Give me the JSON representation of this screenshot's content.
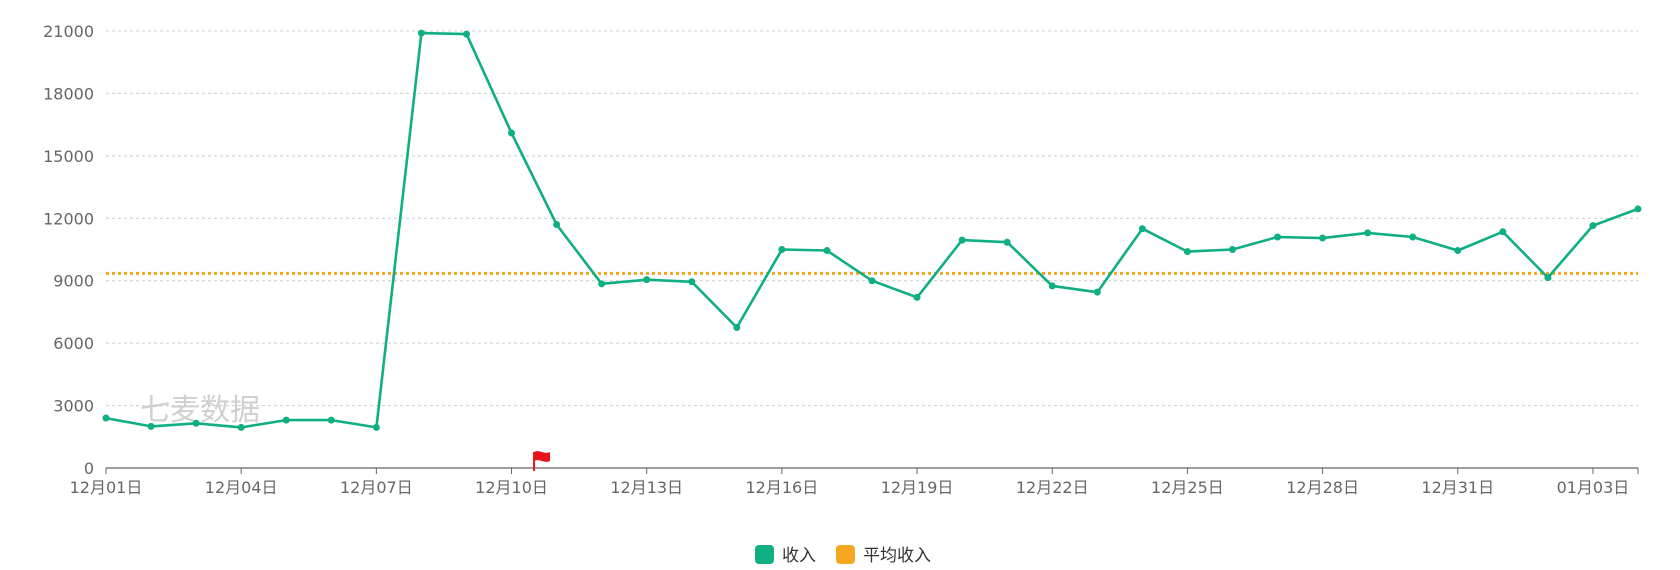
{
  "watermark": "七麦数据",
  "colors": {
    "income": "#0fae83",
    "average": "#f5a623",
    "grid": "#cccccc",
    "axis": "#666666",
    "flag": "#e8141b"
  },
  "icons": {
    "event_marker": "red-flag-icon"
  },
  "chart_data": {
    "type": "line",
    "x_tick_labels": [
      "12月01日",
      "12月04日",
      "12月07日",
      "12月10日",
      "12月13日",
      "12月16日",
      "12月19日",
      "12月22日",
      "12月25日",
      "12月28日",
      "12月31日",
      "01月03日"
    ],
    "x_tick_every": 3,
    "y_ticks": [
      0,
      3000,
      6000,
      9000,
      12000,
      15000,
      18000,
      21000
    ],
    "ylim": [
      0,
      21000
    ],
    "grid": true,
    "legend_position": "bottom-center",
    "categories": [
      "12-01",
      "12-02",
      "12-03",
      "12-04",
      "12-05",
      "12-06",
      "12-07",
      "12-08",
      "12-09",
      "12-10",
      "12-11",
      "12-12",
      "12-13",
      "12-14",
      "12-15",
      "12-16",
      "12-17",
      "12-18",
      "12-19",
      "12-20",
      "12-21",
      "12-22",
      "12-23",
      "12-24",
      "12-25",
      "12-26",
      "12-27",
      "12-28",
      "12-29",
      "12-30",
      "12-31",
      "01-01",
      "01-02",
      "01-03",
      "01-04"
    ],
    "series": [
      {
        "name": "收入",
        "key": "income",
        "values": [
          2400,
          2000,
          2150,
          1950,
          2300,
          2300,
          1950,
          20900,
          20850,
          16100,
          11700,
          8850,
          9050,
          8950,
          6750,
          10500,
          10450,
          9000,
          8200,
          10950,
          10850,
          8750,
          8450,
          11500,
          10400,
          10500,
          11100,
          11050,
          11300,
          11100,
          10450,
          11350,
          9150,
          11650,
          12450
        ]
      }
    ],
    "average": {
      "name": "平均收入",
      "key": "average",
      "value": 9350
    },
    "event_marker_index": 9.5
  }
}
